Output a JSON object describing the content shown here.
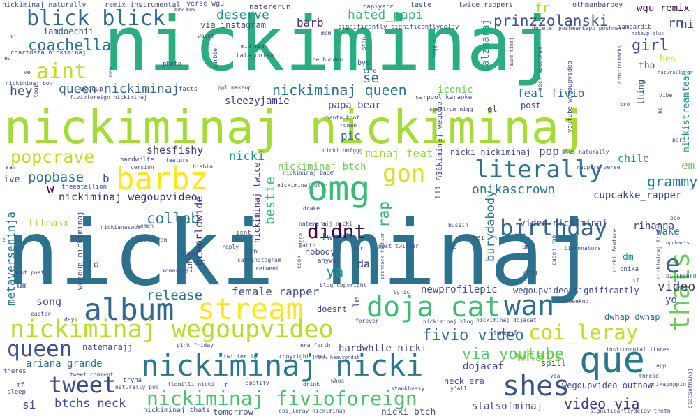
{
  "palette": [
    "#440154",
    "#3b528b",
    "#21918c",
    "#5ec962",
    "#fde725"
  ],
  "words": [
    {
      "text": "nicki minaj",
      "c": "#2c728e"
    },
    {
      "text": "nickiminaj",
      "c": "#29af7f"
    },
    {
      "text": "nickiminaj nickiminaj",
      "c": "#a5db36"
    },
    {
      "text": "nickiminaj wegoupvideo",
      "c": "#b5de2b"
    },
    {
      "text": "album",
      "c": "#31688e"
    },
    {
      "text": "stream",
      "c": "#fde725"
    },
    {
      "text": "doja cat",
      "c": "#3fbc73"
    },
    {
      "text": "nickiminaj nicki",
      "c": "#2a768e"
    },
    {
      "text": "que",
      "c": "#2a788e"
    },
    {
      "text": "wan",
      "c": "#2d708e"
    },
    {
      "text": "thats",
      "c": "#6ccd5a"
    },
    {
      "text": "shes",
      "c": "#39568c"
    },
    {
      "text": "omg",
      "c": "#3aba76"
    },
    {
      "text": "barbz",
      "c": "#fde725"
    },
    {
      "text": "literally",
      "c": "#2d718e"
    },
    {
      "text": "birthday",
      "c": "#31688e"
    },
    {
      "text": "gon",
      "c": "#d8e219"
    },
    {
      "text": "nickiminaj fivioforeign",
      "c": "#4ac16d"
    },
    {
      "text": "queen",
      "c": "#3b528b"
    },
    {
      "text": "tweet",
      "c": "#3e4a89"
    },
    {
      "text": "coi_leray",
      "c": "#c2df23"
    },
    {
      "text": "blick blick",
      "c": "#31688e"
    },
    {
      "text": "aint",
      "c": "#bddf26"
    },
    {
      "text": "popcrave",
      "c": "#bddf26"
    },
    {
      "text": "didnt",
      "c": "#440154"
    },
    {
      "text": "e",
      "c": "#31688e"
    },
    {
      "text": "coachella",
      "c": "#2c728e"
    },
    {
      "text": "whats",
      "c": "#8fd744"
    },
    {
      "text": "fivio video",
      "c": "#2e6e8e"
    },
    {
      "text": "via youtube",
      "c": "#5ec962"
    },
    {
      "text": "video via",
      "c": "#46327e"
    },
    {
      "text": "grammy",
      "c": "#2a788e"
    },
    {
      "text": "popbase",
      "c": "#2c728e"
    },
    {
      "text": "queen nickiminaj",
      "c": "#31688e"
    },
    {
      "text": "nickiminaj queen",
      "c": "#2c728e"
    },
    {
      "text": "prinzzolanski",
      "c": "#3b528b"
    },
    {
      "text": "girl",
      "c": "#3e4a89"
    },
    {
      "text": "release",
      "c": "#2d708e"
    },
    {
      "text": "collab",
      "c": "#2a788e"
    },
    {
      "text": "bestie",
      "c": "#32b67a"
    },
    {
      "text": "rap",
      "c": "#2eb37c"
    },
    {
      "text": "ya",
      "c": "#21918c"
    },
    {
      "text": "video",
      "c": "#46327e"
    },
    {
      "text": "hey",
      "c": "#3b528b"
    },
    {
      "text": "hated_papi",
      "c": "#35b779"
    },
    {
      "text": "deserve",
      "c": "#21918c"
    },
    {
      "text": "barb",
      "c": "#482878"
    },
    {
      "text": "se",
      "c": "#31688e"
    },
    {
      "text": "fr",
      "c": "#addc30"
    },
    {
      "text": "rn",
      "c": "#3b528b"
    },
    {
      "text": "hi",
      "c": "#3e4a89"
    },
    {
      "text": "wgu remix",
      "c": "#440154"
    },
    {
      "text": "w",
      "c": "#440154"
    },
    {
      "text": "b",
      "c": "#3b528b"
    },
    {
      "text": "em",
      "c": "#5ec962"
    },
    {
      "text": "chile",
      "c": "#21918c"
    },
    {
      "text": "pop",
      "c": "#46327e"
    },
    {
      "text": "onikascrown",
      "c": "#2a788e"
    },
    {
      "text": "burydabody",
      "c": "#2a788e"
    },
    {
      "text": "nicki",
      "c": "#21918c"
    },
    {
      "text": "shesfishy",
      "c": "#46327e"
    },
    {
      "text": "minaj feat",
      "c": "#93d741"
    },
    {
      "text": "nickiminaj wegoupvideo",
      "c": "#482878"
    },
    {
      "text": "nicki nickiminaj",
      "c": "#3e4a89"
    },
    {
      "text": "feat fivio",
      "c": "#2c728e"
    },
    {
      "text": "iconic",
      "c": "#6ccd5a"
    },
    {
      "text": "sleezyjamie",
      "c": "#46327e"
    },
    {
      "text": "papa bear",
      "c": "#3e4a89"
    },
    {
      "text": "pic",
      "c": "#2d708e"
    },
    {
      "text": "calzmaraj",
      "c": "#21918c"
    },
    {
      "text": "metaverseninja",
      "c": "#2c728e"
    },
    {
      "text": "female rapper",
      "c": "#3b528b"
    },
    {
      "text": "song",
      "c": "#3e4a89"
    },
    {
      "text": "ariana grande",
      "c": "#31688e"
    },
    {
      "text": "btchs neck",
      "c": "#3e4a89"
    },
    {
      "text": "si",
      "c": "#3e4a89"
    },
    {
      "text": "nickiminaj twice",
      "c": "#46327e"
    },
    {
      "text": "qcworldwide",
      "c": "#46327e"
    },
    {
      "text": "twitter",
      "c": "#2c728e"
    },
    {
      "text": "da",
      "c": "#482878"
    },
    {
      "text": "cupcakke_rapper",
      "c": "#3e4a89"
    },
    {
      "text": "rihanna",
      "c": "#46327e"
    },
    {
      "text": "wake",
      "c": "#2a788e"
    },
    {
      "text": "nickiminaj btch",
      "c": "#6ccd5a"
    },
    {
      "text": "lilnasx",
      "c": "#a5db36"
    },
    {
      "text": "hardwhlte nicki",
      "c": "#3e4a89"
    },
    {
      "text": "dojacat",
      "c": "#3e4a89"
    },
    {
      "text": "natemarajj",
      "c": "#3e4a89"
    },
    {
      "text": "newprofilepic",
      "c": "#3e4a89"
    },
    {
      "text": "wegoupvideo significantly",
      "c": "#3e4a89"
    },
    {
      "text": "dwhap dwhap",
      "c": "#31688e"
    },
    {
      "text": "nickistreamteam",
      "c": "#21918c"
    },
    {
      "text": "statsofminaj",
      "c": "#3e4a89"
    },
    {
      "text": "nicki btch",
      "c": "#3e4a89"
    },
    {
      "text": "video nickiminaj",
      "c": "#3e4a89"
    },
    {
      "text": "wegoupvideo outnow",
      "c": "#3e4a89"
    },
    {
      "text": "yo",
      "c": "#3b528b"
    },
    {
      "text": "iamdoechii",
      "c": "#3e4a89"
    },
    {
      "text": "via instagram",
      "c": "#3e4a89"
    },
    {
      "text": "nickiminaj wegoup",
      "c": "#3e4a89"
    },
    {
      "text": "lil nas",
      "c": "#3e4a89"
    },
    {
      "text": "post",
      "c": "#3e4a89"
    },
    {
      "text": "el",
      "c": "#3e4a89"
    },
    {
      "text": "ive",
      "c": "#3e4a89"
    },
    {
      "text": "wegoup nickiminaj",
      "c": "#3e4a89"
    },
    {
      "text": "lo",
      "c": "#3e4a89"
    },
    {
      "text": "um",
      "c": "#3e4a89"
    },
    {
      "text": "tho",
      "c": "#3e4a89"
    },
    {
      "text": "hes",
      "c": "#bddf26"
    },
    {
      "text": "thing",
      "c": "#3e4a89"
    },
    {
      "text": "dm",
      "c": "#21918c"
    },
    {
      "text": "le",
      "c": "#3e4a89"
    },
    {
      "text": "doesnt",
      "c": "#3e4a89"
    },
    {
      "text": "spill",
      "c": "#3e4a89"
    },
    {
      "text": "tomorrow",
      "c": "#3e4a89"
    },
    {
      "text": "nickiminaj thats",
      "c": "#3e4a89"
    },
    {
      "text": "neck era",
      "c": "#3e4a89"
    },
    {
      "text": "bye",
      "c": "#3e4a89"
    },
    {
      "text": "nobody",
      "c": "#3e4a89"
    },
    {
      "text": "natererun",
      "c": "#3e4a89"
    },
    {
      "text": "verse wgu",
      "c": "#3e4a89"
    },
    {
      "text": "remix instrumental",
      "c": "#3e4a89"
    },
    {
      "text": "nickiminaj naturally",
      "c": "#3e4a89"
    },
    {
      "text": "taste",
      "c": "#3e4a89"
    },
    {
      "text": "twice rappers",
      "c": "#3e4a89"
    },
    {
      "text": "othmanbarbey",
      "c": "#3e4a89"
    },
    {
      "text": "papiyerr",
      "c": "#3e4a89"
    },
    {
      "text": "significantly significantlydelay",
      "c": "#3e4a89"
    },
    {
      "text": "iamcardib",
      "c": "#3e4a89"
    },
    {
      "text": "chartdata nickiminaj",
      "c": "#3e4a89"
    },
    {
      "text": "tata_onika",
      "c": "#3e4a89"
    },
    {
      "text": "mid mid",
      "c": "#3e4a89"
    },
    {
      "text": "photo",
      "c": "#3e4a89"
    },
    {
      "text": "facts",
      "c": "#3e4a89"
    },
    {
      "text": "wegoup",
      "c": "#3e4a89"
    },
    {
      "text": "fivioforeign nickiminaj",
      "c": "#3e4a89"
    },
    {
      "text": "nickiminaj bow",
      "c": "#3e4a89"
    },
    {
      "text": "ppl makeup",
      "c": "#3e4a89"
    },
    {
      "text": "carpool karaoke",
      "c": "#3e4a89"
    },
    {
      "text": "spectrum nigg",
      "c": "#3e4a89"
    },
    {
      "text": "youtube wegoupvideo",
      "c": "#3e4a89"
    },
    {
      "text": "plus naturally",
      "c": "#3e4a89"
    },
    {
      "text": "rappers verse",
      "c": "#3e4a89"
    },
    {
      "text": "hardwhlte",
      "c": "#3e4a89"
    },
    {
      "text": "version",
      "c": "#3e4a89"
    },
    {
      "text": "theestallion",
      "c": "#3e4a89"
    },
    {
      "text": "saw",
      "c": "#3e4a89"
    },
    {
      "text": "drake",
      "c": "#3e4a89"
    },
    {
      "text": "natemarajj nicki",
      "c": "#3e4a89"
    },
    {
      "text": "isnt",
      "c": "#3e4a89"
    },
    {
      "text": "nickianaswoo",
      "c": "#3e4a89"
    },
    {
      "text": "women",
      "c": "#3e4a89"
    },
    {
      "text": "fb",
      "c": "#3e4a89"
    },
    {
      "text": "cat instagram",
      "c": "#3e4a89"
    },
    {
      "text": "retweet",
      "c": "#3e4a89"
    },
    {
      "text": "anyway",
      "c": "#3e4a89"
    },
    {
      "text": "blog copyright",
      "c": "#3e4a89"
    },
    {
      "text": "post post",
      "c": "#3e4a89"
    },
    {
      "text": "easter",
      "c": "#3e4a89"
    },
    {
      "text": "forever",
      "c": "#3e4a89"
    },
    {
      "text": "nickiminaj blog",
      "c": "#3e4a89"
    },
    {
      "text": "nickiminaj dojacat",
      "c": "#3e4a89"
    },
    {
      "text": "itunes f",
      "c": "#3e4a89"
    },
    {
      "text": "theweeknd",
      "c": "#3e4a89"
    },
    {
      "text": "instrumental itunes",
      "c": "#3e4a89"
    },
    {
      "text": "era forth",
      "c": "#3e4a89"
    },
    {
      "text": "pink friday",
      "c": "#3e4a89"
    },
    {
      "text": "twitter ig",
      "c": "#3e4a89"
    },
    {
      "text": "copyright post",
      "c": "#3e4a89"
    },
    {
      "text": "bow heavyondat",
      "c": "#3e4a89"
    },
    {
      "text": "whos",
      "c": "#3e4a89"
    },
    {
      "text": "stankbvssy",
      "c": "#3e4a89"
    },
    {
      "text": "y'all",
      "c": "#3e4a89"
    },
    {
      "text": "yea",
      "c": "#3e4a89"
    },
    {
      "text": "significantlydelay theth",
      "c": "#3e4a89"
    },
    {
      "text": "onikapoppin",
      "c": "#3e4a89"
    },
    {
      "text": "statsofminaj",
      "c": "#3e4a89"
    },
    {
      "text": "thread",
      "c": "#3e4a89"
    },
    {
      "text": "app",
      "c": "#3e4a89"
    },
    {
      "text": "coi_leray nickiminaj",
      "c": "#3e4a89"
    },
    {
      "text": "spotify",
      "c": "#3e4a89"
    },
    {
      "text": "drink",
      "c": "#3e4a89"
    },
    {
      "text": "flomilli nicki",
      "c": "#3e4a89"
    },
    {
      "text": "naturally pol",
      "c": "#3e4a89"
    },
    {
      "text": "tweet comment",
      "c": "#3e4a89"
    },
    {
      "text": "theres",
      "c": "#3e4a89"
    },
    {
      "text": "mf",
      "c": "#3e4a89"
    },
    {
      "text": "sleep",
      "c": "#3e4a89"
    },
    {
      "text": "tryna",
      "c": "#3e4a89"
    },
    {
      "text": "n",
      "c": "#3e4a89"
    },
    {
      "text": "mai",
      "c": "#3e4a89"
    },
    {
      "text": "king",
      "c": "#3e4a89"
    },
    {
      "text": "onika",
      "c": "#3e4a89"
    },
    {
      "text": "un",
      "c": "#3e4a89"
    },
    {
      "text": "voc",
      "c": "#3e4a89"
    },
    {
      "text": "lyric",
      "c": "#3e4a89"
    },
    {
      "text": "post twitter",
      "c": "#3e4a89"
    },
    {
      "text": "bussin",
      "c": "#3e4a89"
    },
    {
      "text": "latto",
      "c": "#3e4a89"
    },
    {
      "text": "cook",
      "c": "#3e4a89"
    },
    {
      "text": "como",
      "c": "#3e4a89"
    },
    {
      "text": "xomarajs",
      "c": "#3e4a89"
    },
    {
      "text": "z",
      "c": "#3e4a89"
    },
    {
      "text": "link",
      "c": "#3e4a89"
    },
    {
      "text": "boo",
      "c": "#3e4a89"
    },
    {
      "text": "vibe",
      "c": "#3e4a89"
    },
    {
      "text": "bc",
      "c": "#3e4a89"
    },
    {
      "text": "bro",
      "c": "#3e4a89"
    },
    {
      "text": "para",
      "c": "#3e4a89"
    },
    {
      "text": "nicki feature",
      "c": "#3e4a89"
    },
    {
      "text": "nickiminaj tiktok",
      "c": "#3e4a89"
    },
    {
      "text": "billboard",
      "c": "#3e4a89"
    },
    {
      "text": "tf",
      "c": "#3e4a89"
    },
    {
      "text": "neck spectrum",
      "c": "#3e4a89"
    },
    {
      "text": "queen rap",
      "c": "#3e4a89"
    },
    {
      "text": "tipronators",
      "c": "#3e4a89"
    },
    {
      "text": "por",
      "c": "#3e4a89"
    },
    {
      "text": "poshmark fashion",
      "c": "#3e4a89"
    },
    {
      "text": "nigga",
      "c": "#3e4a89"
    },
    {
      "text": "reply",
      "c": "#3e4a89"
    },
    {
      "text": "instagram",
      "c": "#3e4a89"
    },
    {
      "text": "biabia",
      "c": "#3e4a89"
    },
    {
      "text": "feature",
      "c": "#3e4a89"
    },
    {
      "text": "nickiminaj babe",
      "c": "#3e4a89"
    },
    {
      "text": "roman",
      "c": "#3e4a89"
    },
    {
      "text": "nicki omfggg",
      "c": "#3e4a89"
    },
    {
      "text": "bantu knot",
      "c": "#3e4a89"
    },
    {
      "text": "day",
      "c": "#3e4a89"
    },
    {
      "text": "tour",
      "c": "#3e4a89"
    },
    {
      "text": "ve",
      "c": "#3e4a89"
    },
    {
      "text": "men",
      "c": "#3e4a89"
    },
    {
      "text": "wasnt",
      "c": "#3e4a89"
    },
    {
      "text": "barbie",
      "c": "#3e4a89"
    },
    {
      "text": "eu",
      "c": "#3e4a89"
    },
    {
      "text": "mi",
      "c": "#3e4a89"
    },
    {
      "text": "bow bow",
      "c": "#3e4a89"
    },
    {
      "text": "mom",
      "c": "#3e4a89"
    },
    {
      "text": "stan",
      "c": "#3e4a89"
    },
    {
      "text": "joe budden",
      "c": "#3e4a89"
    },
    {
      "text": "tire",
      "c": "#3e4a89"
    },
    {
      "text": "nigg z",
      "c": "#3e4a89"
    },
    {
      "text": "jawad_minaj",
      "c": "#3e4a89"
    },
    {
      "text": "delete",
      "c": "#3e4a89"
    },
    {
      "text": "poshmarkapp poshmark",
      "c": "#3e4a89"
    },
    {
      "text": "makeup plus",
      "c": "#3e4a89"
    },
    {
      "text": "croatianbarbs",
      "c": "#3e4a89"
    },
    {
      "text": "naturally gr",
      "c": "#3e4a89"
    },
    {
      "text": "opcharts",
      "c": "#3e4a89"
    },
    {
      "text": "nickiminaj btch",
      "c": "#3e4a89"
    }
  ]
}
